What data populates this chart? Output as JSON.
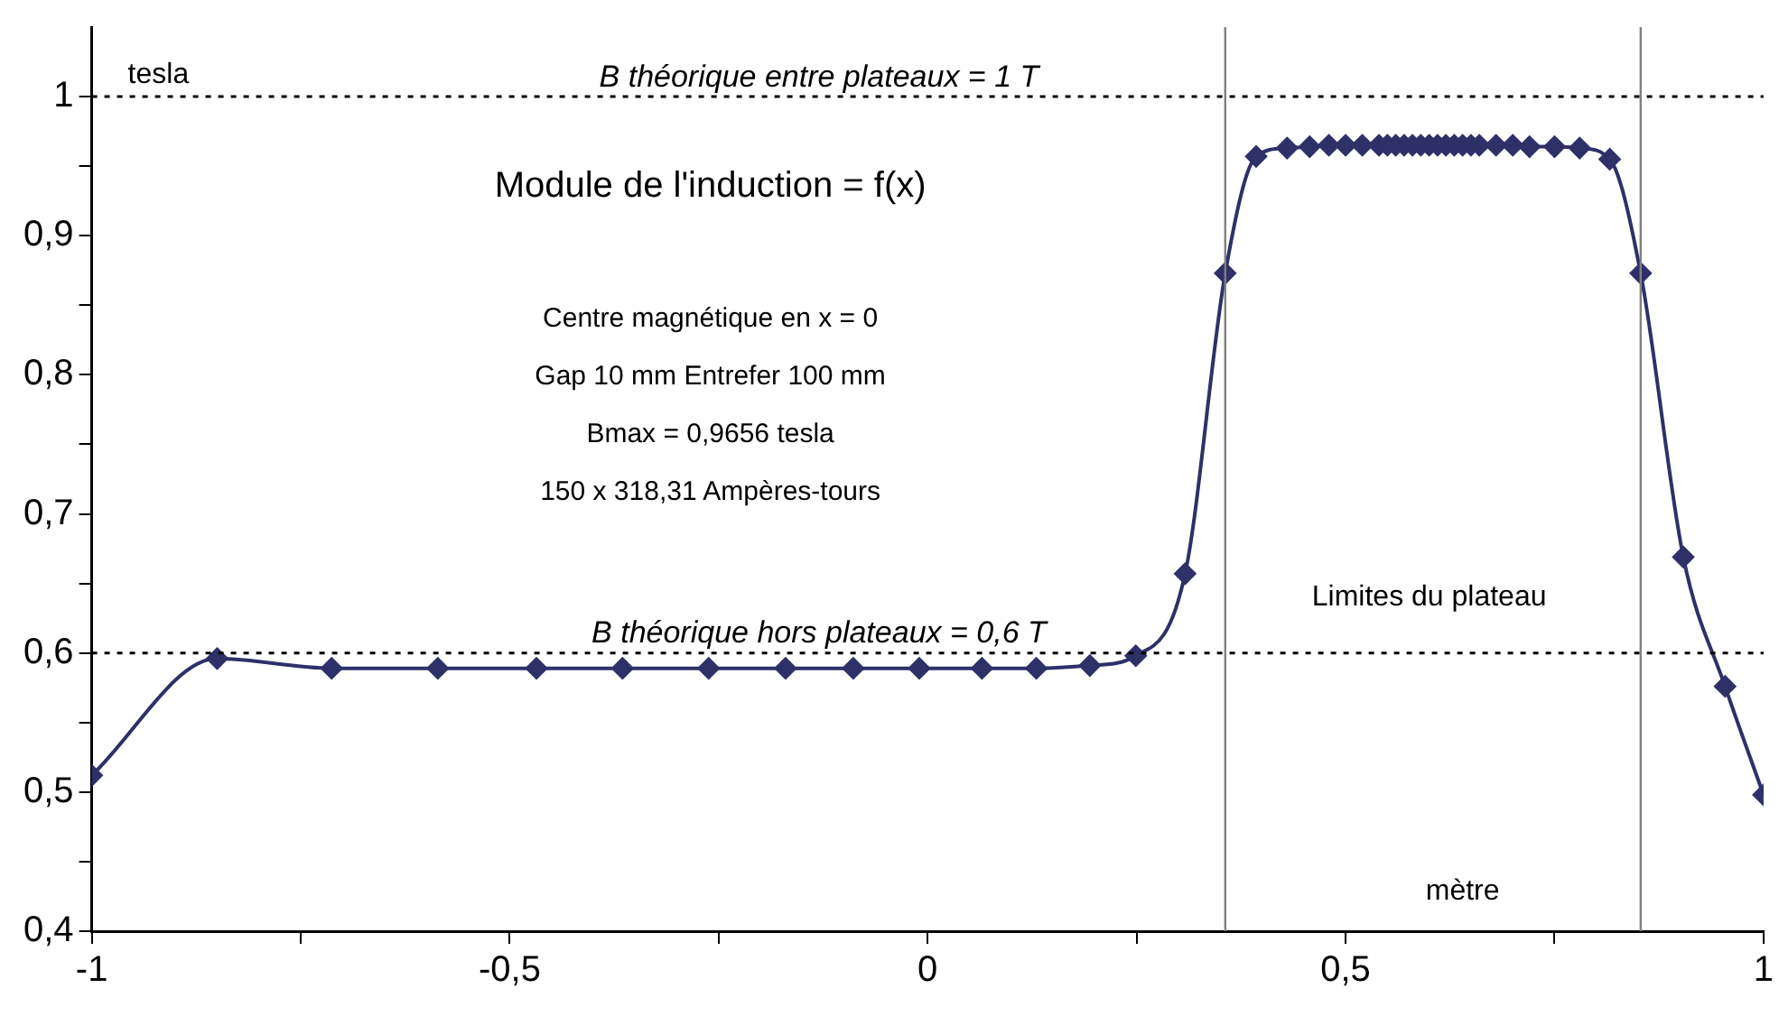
{
  "chart_data": {
    "type": "line",
    "title": "Module de l'induction = f(x)",
    "xlabel": "mètre",
    "ylabel": "tesla",
    "annotations": [
      "Centre magnétique en x = 0",
      "Gap 10 mm Entrefer 100 mm",
      "Bmax = 0,9656 tesla",
      "150 x 318,31 Ampères-tours",
      "Limites du plateau"
    ],
    "series": [
      {
        "color": "#2e3168",
        "x": [
          -1,
          -0.85,
          -0.713,
          -0.586,
          -0.468,
          -0.365,
          -0.262,
          -0.17,
          -0.089,
          -0.01,
          0.065,
          0.13,
          0.194,
          0.249,
          0.308,
          0.356,
          0.393,
          0.43,
          0.457,
          0.48,
          0.5,
          0.52,
          0.54,
          0.55,
          0.56,
          0.57,
          0.58,
          0.59,
          0.6,
          0.61,
          0.62,
          0.63,
          0.64,
          0.65,
          0.66,
          0.68,
          0.7,
          0.72,
          0.75,
          0.78,
          0.816,
          0.853,
          0.904,
          0.954,
          1
        ],
        "values": [
          0.512,
          0.596,
          0.589,
          0.589,
          0.589,
          0.589,
          0.589,
          0.589,
          0.589,
          0.589,
          0.589,
          0.589,
          0.591,
          0.598,
          0.657,
          0.873,
          0.957,
          0.963,
          0.964,
          0.965,
          0.965,
          0.965,
          0.965,
          0.965,
          0.965,
          0.965,
          0.965,
          0.965,
          0.965,
          0.965,
          0.965,
          0.965,
          0.965,
          0.965,
          0.965,
          0.965,
          0.965,
          0.964,
          0.964,
          0.963,
          0.955,
          0.873,
          0.669,
          0.576,
          0.498
        ]
      }
    ],
    "xlim": [
      -1,
      1
    ],
    "xticks": [
      -1,
      {
        "value": -0.75,
        "label": null
      },
      {
        "value": -0.5,
        "label": "-0,5"
      },
      {
        "value": -0.25,
        "label": null
      },
      0,
      {
        "value": 0.25,
        "label": null
      },
      {
        "value": 0.5,
        "label": "0,5"
      },
      {
        "value": 0.75,
        "label": null
      },
      1
    ],
    "ylim": [
      0.4,
      1.05
    ],
    "yticks": [
      {
        "value": 0.4,
        "label": "0,4"
      },
      {
        "value": 0.45,
        "label": null
      },
      {
        "value": 0.5,
        "label": "0,5"
      },
      {
        "value": 0.55,
        "label": null
      },
      {
        "value": 0.6,
        "label": "0,6"
      },
      {
        "value": 0.65,
        "label": null
      },
      {
        "value": 0.7,
        "label": "0,7"
      },
      {
        "value": 0.75,
        "label": null
      },
      {
        "value": 0.8,
        "label": "0,8"
      },
      {
        "value": 0.85,
        "label": null
      },
      {
        "value": 0.9,
        "label": "0,9"
      },
      {
        "value": 0.95,
        "label": null
      },
      1
    ],
    "ref_lines": [
      {
        "axis": "y",
        "value": 1,
        "label": "B théorique entre plateaux = 1 T",
        "line_style": "dotted",
        "color": "#000000"
      },
      {
        "axis": "y",
        "value": 0.6,
        "label": "B théorique hors plateaux = 0,6 T",
        "line_style": "dotted",
        "color": "#000000"
      },
      {
        "axis": "x",
        "value": 0.356,
        "line_style": "solid",
        "color": "#808080"
      },
      {
        "axis": "x",
        "value": 0.853,
        "line_style": "solid",
        "color": "#808080"
      }
    ],
    "grid": false,
    "legend": false,
    "marker": "diamond",
    "line_style": "solid"
  }
}
